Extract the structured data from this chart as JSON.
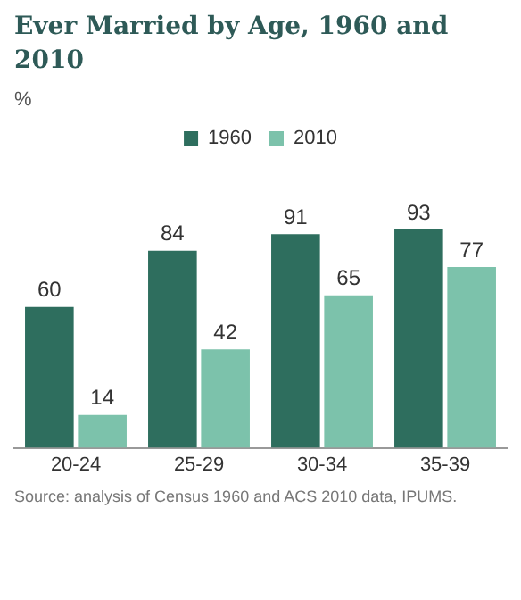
{
  "chart_data": {
    "type": "bar",
    "title": "Ever Married by Age, 1960 and 2010",
    "categories": [
      "20-24",
      "25-29",
      "30-34",
      "35-39"
    ],
    "series": [
      {
        "name": "1960",
        "color": "#2e6e5e",
        "values": [
          60,
          84,
          91,
          93
        ]
      },
      {
        "name": "2010",
        "color": "#7cc2ab",
        "values": [
          14,
          42,
          65,
          77
        ]
      }
    ],
    "data_labels": true,
    "legend": "top",
    "grid": false,
    "annotations": [
      "%",
      "Source: analysis of Census 1960 and ACS 2010 data, IPUMS."
    ]
  }
}
